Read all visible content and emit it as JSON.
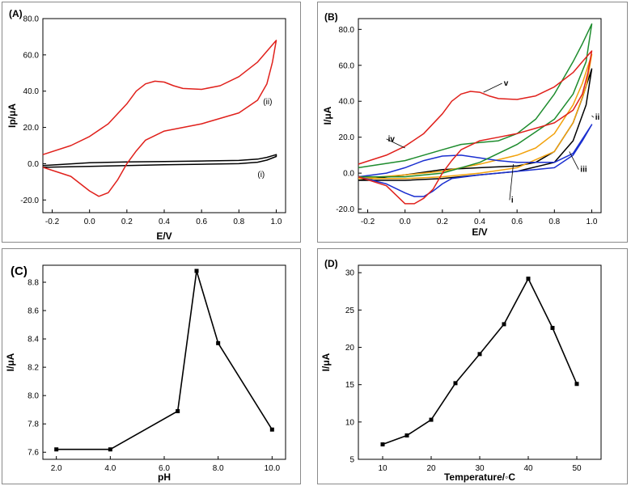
{
  "colors": {
    "red": "#e0201b",
    "black": "#000000",
    "green": "#1e8c2e",
    "blue": "#1a2fd0",
    "orange": "#f2a20c",
    "frame": "#8a8a8a"
  },
  "chart_data": [
    {
      "id": "A",
      "panel_label": "(A)",
      "type": "line",
      "xlabel": "E/V",
      "ylabel": "Ip/μA",
      "xlim": [
        -0.25,
        1.05
      ],
      "ylim": [
        -27,
        80
      ],
      "xticks": [
        -0.2,
        0.0,
        0.2,
        0.4,
        0.6,
        0.8,
        1.0
      ],
      "yticks": [
        -20,
        0,
        20,
        40,
        60,
        80
      ],
      "tick_decimals": 1,
      "series": [
        {
          "name": "(i)",
          "color": "black",
          "x": [
            -0.25,
            0.0,
            0.2,
            0.4,
            0.6,
            0.8,
            0.9,
            0.95,
            1.0,
            1.0,
            0.95,
            0.9,
            0.8,
            0.6,
            0.4,
            0.2,
            0.0,
            -0.25
          ],
          "y": [
            -1,
            0.5,
            1,
            1.2,
            1.5,
            1.8,
            2.5,
            3.5,
            5,
            4,
            2,
            0.8,
            0,
            -0.3,
            -0.6,
            -1,
            -1.5,
            -2
          ]
        },
        {
          "name": "(ii)",
          "color": "red",
          "x": [
            -0.25,
            -0.1,
            0.0,
            0.1,
            0.2,
            0.25,
            0.3,
            0.35,
            0.4,
            0.45,
            0.5,
            0.6,
            0.7,
            0.8,
            0.9,
            0.95,
            1.0,
            0.98,
            0.95,
            0.9,
            0.8,
            0.7,
            0.6,
            0.5,
            0.4,
            0.3,
            0.25,
            0.2,
            0.15,
            0.1,
            0.05,
            0.0,
            -0.1,
            -0.25
          ],
          "y": [
            5,
            10,
            15,
            22,
            33,
            40,
            44,
            45.5,
            45,
            43,
            41.5,
            41,
            43,
            48,
            56,
            62,
            68,
            56,
            44,
            35,
            28,
            25,
            22,
            20,
            18,
            13,
            7,
            0,
            -9,
            -16,
            -18,
            -15,
            -7,
            -2
          ]
        }
      ],
      "annotations": [
        {
          "text": "(ii)",
          "x": 0.9,
          "y": 34,
          "tx": 0.93,
          "ty": 34
        },
        {
          "text": "(i)",
          "x": 0.87,
          "y": -4,
          "tx": 0.9,
          "ty": -6
        }
      ]
    },
    {
      "id": "B",
      "panel_label": "(B)",
      "type": "line",
      "xlabel": "E/V",
      "ylabel": "I/μA",
      "xlim": [
        -0.25,
        1.05
      ],
      "ylim": [
        -22,
        86
      ],
      "xticks": [
        -0.2,
        0.0,
        0.2,
        0.4,
        0.6,
        0.8,
        1.0
      ],
      "yticks": [
        -20,
        0,
        20,
        40,
        60,
        80
      ],
      "tick_decimals": 1,
      "series": [
        {
          "name": "i",
          "color": "black",
          "x": [
            -0.25,
            0.0,
            0.2,
            0.4,
            0.6,
            0.7,
            0.8,
            0.9,
            0.95,
            1.0,
            0.97,
            0.9,
            0.8,
            0.6,
            0.4,
            0.2,
            0.0,
            -0.25
          ],
          "y": [
            -4,
            -1,
            2,
            3,
            4,
            6,
            12,
            28,
            42,
            58,
            38,
            18,
            6,
            1,
            -1,
            -3,
            -4,
            -4
          ]
        },
        {
          "name": "ii",
          "color": "orange",
          "x": [
            -0.25,
            0.0,
            0.2,
            0.4,
            0.6,
            0.7,
            0.8,
            0.9,
            0.95,
            1.0,
            0.97,
            0.9,
            0.8,
            0.6,
            0.4,
            0.2,
            0.0,
            -0.25
          ],
          "y": [
            -3,
            -1,
            1,
            5,
            10,
            14,
            22,
            38,
            50,
            66,
            48,
            28,
            12,
            3,
            0,
            -2,
            -3,
            -3
          ]
        },
        {
          "name": "iii",
          "color": "blue",
          "x": [
            -0.25,
            -0.1,
            0.0,
            0.1,
            0.2,
            0.3,
            0.4,
            0.5,
            0.6,
            0.8,
            0.9,
            1.0,
            0.95,
            0.9,
            0.8,
            0.6,
            0.4,
            0.25,
            0.2,
            0.15,
            0.1,
            0.05,
            0.0,
            -0.1,
            -0.25
          ],
          "y": [
            -2,
            0,
            3,
            7,
            9.5,
            10,
            8.5,
            7,
            6,
            6,
            11,
            27,
            18,
            10,
            3,
            1,
            -1,
            -3,
            -6,
            -10,
            -13,
            -13,
            -11,
            -6,
            -2
          ]
        },
        {
          "name": "iv",
          "color": "green",
          "x": [
            -0.25,
            0.0,
            0.2,
            0.3,
            0.4,
            0.5,
            0.6,
            0.7,
            0.8,
            0.9,
            0.95,
            1.0,
            0.97,
            0.9,
            0.8,
            0.6,
            0.4,
            0.2,
            0.0,
            -0.25
          ],
          "y": [
            3,
            7,
            13,
            16,
            17,
            18,
            22,
            30,
            44,
            62,
            72,
            83,
            62,
            44,
            30,
            16,
            6,
            0,
            -2,
            -2
          ]
        },
        {
          "name": "v",
          "color": "red",
          "x": [
            -0.25,
            -0.1,
            0.0,
            0.1,
            0.2,
            0.25,
            0.3,
            0.35,
            0.4,
            0.45,
            0.5,
            0.6,
            0.7,
            0.8,
            0.9,
            0.95,
            1.0,
            0.98,
            0.95,
            0.9,
            0.8,
            0.7,
            0.6,
            0.5,
            0.4,
            0.3,
            0.25,
            0.2,
            0.15,
            0.1,
            0.05,
            0.0,
            -0.1,
            -0.25
          ],
          "y": [
            5,
            10,
            15,
            22,
            33,
            40,
            44,
            45.5,
            45,
            43,
            41.5,
            41,
            43,
            48,
            56,
            62,
            68,
            56,
            44,
            35,
            28,
            25,
            22,
            20,
            18,
            13,
            7,
            0,
            -9,
            -14,
            -17,
            -17,
            -7,
            -2
          ]
        }
      ],
      "annotations": [
        {
          "text": "v",
          "x": 0.42,
          "y": 45,
          "tx": 0.52,
          "ty": 50
        },
        {
          "text": "iv",
          "x": 0.0,
          "y": 14,
          "tx": -0.1,
          "ty": 19
        },
        {
          "text": "ii",
          "x": 1.0,
          "y": 32,
          "tx": 1.01,
          "ty": 31
        },
        {
          "text": "iii",
          "x": 0.88,
          "y": 12,
          "tx": 0.93,
          "ty": 2
        },
        {
          "text": "i",
          "x": 0.58,
          "y": 5,
          "tx": 0.56,
          "ty": -15
        }
      ]
    },
    {
      "id": "C",
      "panel_label": "(C)",
      "type": "line",
      "xlabel": "pH",
      "ylabel": "I/μA",
      "xlim": [
        1.5,
        10.5
      ],
      "ylim": [
        7.55,
        8.92
      ],
      "xticks": [
        2,
        4,
        6,
        8,
        10
      ],
      "yticks": [
        7.6,
        7.8,
        8.0,
        8.2,
        8.4,
        8.6,
        8.8
      ],
      "tick_decimals": 1,
      "series": [
        {
          "name": "pH",
          "color": "black",
          "x": [
            2,
            4,
            6.5,
            7.2,
            8,
            10
          ],
          "y": [
            7.62,
            7.62,
            7.89,
            8.88,
            8.37,
            7.76
          ]
        }
      ],
      "annotations": []
    },
    {
      "id": "D",
      "panel_label": "(D)",
      "type": "line",
      "xlabel": "Temperature/◦C",
      "ylabel": "I/μA",
      "xlim": [
        5,
        55
      ],
      "ylim": [
        5,
        31
      ],
      "xticks": [
        10,
        20,
        30,
        40,
        50
      ],
      "yticks": [
        5,
        10,
        15,
        20,
        25,
        30
      ],
      "tick_decimals": 0,
      "series": [
        {
          "name": "Temperature",
          "color": "black",
          "x": [
            10,
            15,
            20,
            25,
            30,
            35,
            40,
            45,
            50
          ],
          "y": [
            7,
            8.2,
            10.3,
            15.2,
            19.1,
            23.1,
            29.2,
            22.6,
            15.1
          ]
        }
      ],
      "annotations": []
    }
  ]
}
